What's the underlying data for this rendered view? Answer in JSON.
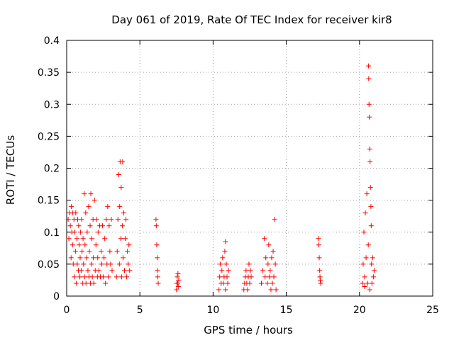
{
  "chart_data": {
    "type": "scatter",
    "title": "Day 061 of 2019, Rate Of TEC Index for receiver kir8",
    "xlabel": "GPS time / hours",
    "ylabel": "ROTI / TECUs",
    "xlim": [
      0,
      25
    ],
    "ylim": [
      0,
      0.4
    ],
    "xticks": [
      0,
      5,
      10,
      15,
      20,
      25
    ],
    "xtick_labels": [
      "0",
      "5",
      "10",
      "15",
      "20",
      "25"
    ],
    "yticks": [
      0,
      0.05,
      0.1,
      0.15,
      0.2,
      0.25,
      0.3,
      0.35,
      0.4
    ],
    "ytick_labels": [
      "0",
      "0.05",
      "0.1",
      "0.15",
      "0.2",
      "0.25",
      "0.3",
      "0.35",
      "0.4"
    ],
    "grid": true,
    "marker": "+",
    "color": "#ff0000",
    "series": [
      {
        "name": "ROTI",
        "points": [
          [
            0.1,
            0.12
          ],
          [
            0.15,
            0.09
          ],
          [
            0.2,
            0.13
          ],
          [
            0.25,
            0.11
          ],
          [
            0.3,
            0.06
          ],
          [
            0.32,
            0.14
          ],
          [
            0.35,
            0.1
          ],
          [
            0.4,
            0.08
          ],
          [
            0.42,
            0.13
          ],
          [
            0.45,
            0.05
          ],
          [
            0.5,
            0.12
          ],
          [
            0.52,
            0.03
          ],
          [
            0.55,
            0.1
          ],
          [
            0.6,
            0.07
          ],
          [
            0.62,
            0.13
          ],
          [
            0.65,
            0.02
          ],
          [
            0.7,
            0.09
          ],
          [
            0.72,
            0.05
          ],
          [
            0.75,
            0.12
          ],
          [
            0.8,
            0.04
          ],
          [
            0.82,
            0.11
          ],
          [
            0.85,
            0.08
          ],
          [
            0.9,
            0.03
          ],
          [
            0.92,
            0.06
          ],
          [
            0.95,
            0.1
          ],
          [
            1.0,
            0.04
          ],
          [
            1.02,
            0.12
          ],
          [
            1.05,
            0.07
          ],
          [
            1.1,
            0.02
          ],
          [
            1.12,
            0.09
          ],
          [
            1.15,
            0.05
          ],
          [
            1.2,
            0.16
          ],
          [
            1.22,
            0.03
          ],
          [
            1.25,
            0.08
          ],
          [
            1.3,
            0.13
          ],
          [
            1.32,
            0.02
          ],
          [
            1.35,
            0.06
          ],
          [
            1.4,
            0.1
          ],
          [
            1.45,
            0.04
          ],
          [
            1.5,
            0.14
          ],
          [
            1.52,
            0.03
          ],
          [
            1.55,
            0.07
          ],
          [
            1.6,
            0.11
          ],
          [
            1.62,
            0.02
          ],
          [
            1.65,
            0.16
          ],
          [
            1.7,
            0.05
          ],
          [
            1.72,
            0.09
          ],
          [
            1.75,
            0.03
          ],
          [
            1.8,
            0.12
          ],
          [
            1.82,
            0.06
          ],
          [
            1.85,
            0.02
          ],
          [
            1.9,
            0.15
          ],
          [
            1.95,
            0.04
          ],
          [
            2.0,
            0.08
          ],
          [
            2.05,
            0.12
          ],
          [
            2.1,
            0.03
          ],
          [
            2.12,
            0.06
          ],
          [
            2.15,
            0.1
          ],
          [
            2.2,
            0.04
          ],
          [
            2.25,
            0.11
          ],
          [
            2.3,
            0.03
          ],
          [
            2.35,
            0.07
          ],
          [
            2.4,
            0.05
          ],
          [
            2.45,
            0.11
          ],
          [
            2.5,
            0.03
          ],
          [
            2.55,
            0.06
          ],
          [
            2.6,
            0.09
          ],
          [
            2.65,
            0.02
          ],
          [
            2.7,
            0.12
          ],
          [
            2.75,
            0.05
          ],
          [
            2.8,
            0.14
          ],
          [
            2.85,
            0.03
          ],
          [
            2.9,
            0.11
          ],
          [
            2.95,
            0.07
          ],
          [
            3.0,
            0.05
          ],
          [
            3.05,
            0.12
          ],
          [
            3.1,
            0.04
          ],
          [
            3.4,
            0.03
          ],
          [
            3.45,
            0.07
          ],
          [
            3.5,
            0.12
          ],
          [
            3.55,
            0.19
          ],
          [
            3.6,
            0.05
          ],
          [
            3.62,
            0.14
          ],
          [
            3.65,
            0.21
          ],
          [
            3.7,
            0.09
          ],
          [
            3.72,
            0.17
          ],
          [
            3.75,
            0.03
          ],
          [
            3.8,
            0.11
          ],
          [
            3.82,
            0.21
          ],
          [
            3.85,
            0.06
          ],
          [
            3.9,
            0.13
          ],
          [
            3.95,
            0.04
          ],
          [
            4.0,
            0.09
          ],
          [
            4.05,
            0.12
          ],
          [
            4.1,
            0.03
          ],
          [
            4.15,
            0.07
          ],
          [
            4.2,
            0.05
          ],
          [
            4.25,
            0.08
          ],
          [
            4.3,
            0.04
          ],
          [
            6.1,
            0.12
          ],
          [
            6.12,
            0.11
          ],
          [
            6.15,
            0.08
          ],
          [
            6.18,
            0.06
          ],
          [
            6.2,
            0.04
          ],
          [
            6.22,
            0.03
          ],
          [
            6.25,
            0.02
          ],
          [
            7.5,
            0.01
          ],
          [
            7.52,
            0.02
          ],
          [
            7.55,
            0.03
          ],
          [
            7.58,
            0.02
          ],
          [
            7.6,
            0.035
          ],
          [
            7.62,
            0.015
          ],
          [
            7.65,
            0.025
          ],
          [
            10.4,
            0.01
          ],
          [
            10.45,
            0.03
          ],
          [
            10.5,
            0.05
          ],
          [
            10.55,
            0.02
          ],
          [
            10.6,
            0.04
          ],
          [
            10.65,
            0.06
          ],
          [
            10.7,
            0.02
          ],
          [
            10.75,
            0.03
          ],
          [
            10.8,
            0.07
          ],
          [
            10.85,
            0.01
          ],
          [
            10.9,
            0.05
          ],
          [
            10.95,
            0.03
          ],
          [
            11.0,
            0.02
          ],
          [
            11.05,
            0.04
          ],
          [
            10.85,
            0.085
          ],
          [
            12.1,
            0.01
          ],
          [
            12.15,
            0.02
          ],
          [
            12.2,
            0.03
          ],
          [
            12.25,
            0.04
          ],
          [
            12.3,
            0.02
          ],
          [
            12.35,
            0.01
          ],
          [
            12.4,
            0.03
          ],
          [
            12.45,
            0.05
          ],
          [
            12.5,
            0.02
          ],
          [
            12.55,
            0.04
          ],
          [
            12.6,
            0.03
          ],
          [
            13.3,
            0.02
          ],
          [
            13.4,
            0.04
          ],
          [
            13.5,
            0.09
          ],
          [
            13.55,
            0.03
          ],
          [
            13.6,
            0.06
          ],
          [
            13.7,
            0.02
          ],
          [
            13.75,
            0.05
          ],
          [
            13.8,
            0.08
          ],
          [
            13.85,
            0.03
          ],
          [
            13.9,
            0.04
          ],
          [
            13.95,
            0.01
          ],
          [
            14.0,
            0.06
          ],
          [
            14.05,
            0.02
          ],
          [
            14.1,
            0.07
          ],
          [
            14.15,
            0.03
          ],
          [
            14.2,
            0.12
          ],
          [
            14.25,
            0.05
          ],
          [
            14.3,
            0.01
          ],
          [
            17.2,
            0.09
          ],
          [
            17.22,
            0.08
          ],
          [
            17.25,
            0.06
          ],
          [
            17.28,
            0.04
          ],
          [
            17.3,
            0.03
          ],
          [
            17.32,
            0.025
          ],
          [
            17.35,
            0.02
          ],
          [
            20.2,
            0.02
          ],
          [
            20.25,
            0.05
          ],
          [
            20.3,
            0.1
          ],
          [
            20.35,
            0.03
          ],
          [
            20.4,
            0.13
          ],
          [
            20.45,
            0.06
          ],
          [
            20.5,
            0.16
          ],
          [
            20.55,
            0.02
          ],
          [
            20.6,
            0.08
          ],
          [
            20.62,
            0.36
          ],
          [
            20.63,
            0.34
          ],
          [
            20.65,
            0.3
          ],
          [
            20.67,
            0.28
          ],
          [
            20.7,
            0.23
          ],
          [
            20.72,
            0.21
          ],
          [
            20.75,
            0.17
          ],
          [
            20.78,
            0.14
          ],
          [
            20.8,
            0.11
          ],
          [
            20.82,
            0.05
          ],
          [
            20.85,
            0.02
          ],
          [
            20.9,
            0.06
          ],
          [
            20.95,
            0.03
          ],
          [
            21.0,
            0.04
          ],
          [
            20.35,
            0.015
          ],
          [
            20.7,
            0.01
          ]
        ]
      }
    ]
  }
}
